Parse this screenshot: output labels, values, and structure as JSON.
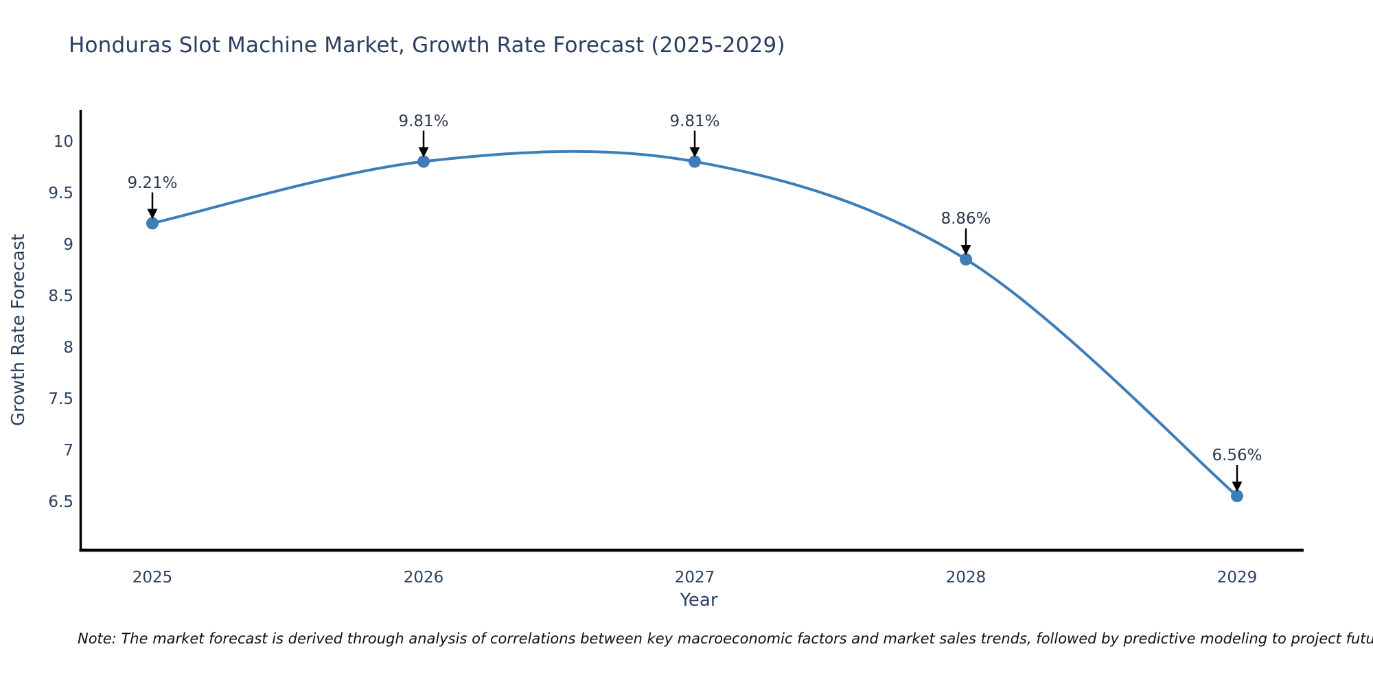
{
  "page": {
    "background": "#ffffff"
  },
  "chart": {
    "note": "Note: The market forecast is derived through analysis of correlations between key macroeconomic factors and market sales trends, followed by predictive modeling to project future sales",
    "colors": {
      "line": "#3d7db8",
      "marker": "#3d7db8",
      "axis_line": "#000000",
      "arrow": "#000000",
      "title_text": "#2a3f5f",
      "tick_text": "#2a3f5f",
      "note_text": "#101010"
    }
  },
  "chart_data": {
    "type": "line",
    "title": "Honduras Slot Machine Market, Growth Rate Forecast (2025-2029)",
    "xlabel": "Year",
    "ylabel": "Growth Rate Forecast",
    "x": [
      "2025",
      "2026",
      "2027",
      "2028",
      "2029"
    ],
    "values": [
      9.21,
      9.81,
      9.81,
      8.86,
      6.56
    ],
    "point_labels": [
      "9.21%",
      "9.81%",
      "9.81%",
      "8.86%",
      "6.56%"
    ],
    "yticks": [
      6.5,
      7,
      7.5,
      8,
      8.5,
      9,
      9.5,
      10
    ],
    "ylim": [
      6.03,
      10.31
    ],
    "grid": false,
    "legend_position": "none",
    "line_smooth": true,
    "marker_shape": "circle",
    "annotation_style": "value label with downward arrow to point"
  }
}
